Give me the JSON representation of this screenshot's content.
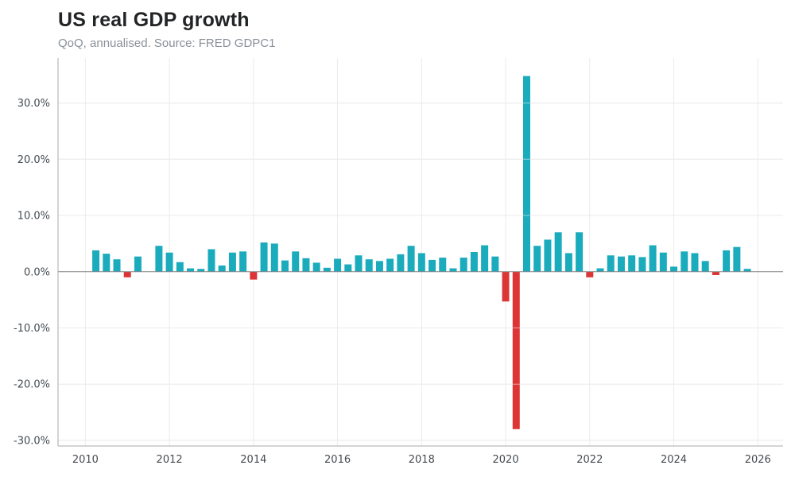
{
  "title": "US real GDP growth",
  "subtitle": "QoQ, annualised. Source: FRED GDPC1",
  "colors": {
    "positive": "#1aabbd",
    "negative": "#dd3535",
    "grid": "#ebebeb",
    "axis": "#aaaaaa",
    "zero_line": "#888888"
  },
  "chart_data": {
    "type": "bar",
    "title": "US real GDP growth",
    "subtitle": "QoQ, annualised. Source: FRED GDPC1",
    "xlabel": "",
    "ylabel": "",
    "x_unit": "year (quarter start as decimal year)",
    "xlim": [
      2009.35,
      2026.6
    ],
    "ylim": [
      -31,
      38
    ],
    "grid": true,
    "legend": "none",
    "x_ticks": [
      "2010",
      "2012",
      "2014",
      "2016",
      "2018",
      "2020",
      "2022",
      "2024",
      "2026"
    ],
    "y_ticks": [
      "-30.0%",
      "-20.0%",
      "-10.0%",
      "0.0%",
      "10.0%",
      "20.0%",
      "30.0%"
    ],
    "series": [
      {
        "values_pct": [
          {
            "x": 2010.25,
            "y": 3.8
          },
          {
            "x": 2010.5,
            "y": 3.2
          },
          {
            "x": 2010.75,
            "y": 2.2
          },
          {
            "x": 2011.0,
            "y": -1.0
          },
          {
            "x": 2011.25,
            "y": 2.7
          },
          {
            "x": 2011.5,
            "y": 0.0
          },
          {
            "x": 2011.75,
            "y": 4.6
          },
          {
            "x": 2012.0,
            "y": 3.4
          },
          {
            "x": 2012.25,
            "y": 1.7
          },
          {
            "x": 2012.5,
            "y": 0.6
          },
          {
            "x": 2012.75,
            "y": 0.5
          },
          {
            "x": 2013.0,
            "y": 4.0
          },
          {
            "x": 2013.25,
            "y": 1.1
          },
          {
            "x": 2013.5,
            "y": 3.4
          },
          {
            "x": 2013.75,
            "y": 3.6
          },
          {
            "x": 2014.0,
            "y": -1.4
          },
          {
            "x": 2014.25,
            "y": 5.2
          },
          {
            "x": 2014.5,
            "y": 5.0
          },
          {
            "x": 2014.75,
            "y": 2.0
          },
          {
            "x": 2015.0,
            "y": 3.6
          },
          {
            "x": 2015.25,
            "y": 2.4
          },
          {
            "x": 2015.5,
            "y": 1.6
          },
          {
            "x": 2015.75,
            "y": 0.7
          },
          {
            "x": 2016.0,
            "y": 2.3
          },
          {
            "x": 2016.25,
            "y": 1.3
          },
          {
            "x": 2016.5,
            "y": 2.9
          },
          {
            "x": 2016.75,
            "y": 2.2
          },
          {
            "x": 2017.0,
            "y": 1.9
          },
          {
            "x": 2017.25,
            "y": 2.3
          },
          {
            "x": 2017.5,
            "y": 3.1
          },
          {
            "x": 2017.75,
            "y": 4.6
          },
          {
            "x": 2018.0,
            "y": 3.3
          },
          {
            "x": 2018.25,
            "y": 2.1
          },
          {
            "x": 2018.5,
            "y": 2.5
          },
          {
            "x": 2018.75,
            "y": 0.6
          },
          {
            "x": 2019.0,
            "y": 2.5
          },
          {
            "x": 2019.25,
            "y": 3.5
          },
          {
            "x": 2019.5,
            "y": 4.7
          },
          {
            "x": 2019.75,
            "y": 2.7
          },
          {
            "x": 2020.0,
            "y": -5.3
          },
          {
            "x": 2020.25,
            "y": -28.0
          },
          {
            "x": 2020.5,
            "y": 34.8
          },
          {
            "x": 2020.75,
            "y": 4.6
          },
          {
            "x": 2021.0,
            "y": 5.7
          },
          {
            "x": 2021.25,
            "y": 7.0
          },
          {
            "x": 2021.5,
            "y": 3.3
          },
          {
            "x": 2021.75,
            "y": 7.0
          },
          {
            "x": 2022.0,
            "y": -1.0
          },
          {
            "x": 2022.25,
            "y": 0.6
          },
          {
            "x": 2022.5,
            "y": 2.9
          },
          {
            "x": 2022.75,
            "y": 2.7
          },
          {
            "x": 2023.0,
            "y": 2.9
          },
          {
            "x": 2023.25,
            "y": 2.6
          },
          {
            "x": 2023.5,
            "y": 4.7
          },
          {
            "x": 2023.75,
            "y": 3.4
          },
          {
            "x": 2024.0,
            "y": 0.9
          },
          {
            "x": 2024.25,
            "y": 3.6
          },
          {
            "x": 2024.5,
            "y": 3.3
          },
          {
            "x": 2024.75,
            "y": 1.9
          },
          {
            "x": 2025.0,
            "y": -0.6
          },
          {
            "x": 2025.25,
            "y": 3.8
          },
          {
            "x": 2025.5,
            "y": 4.4
          },
          {
            "x": 2025.75,
            "y": 0.5
          }
        ]
      }
    ]
  }
}
